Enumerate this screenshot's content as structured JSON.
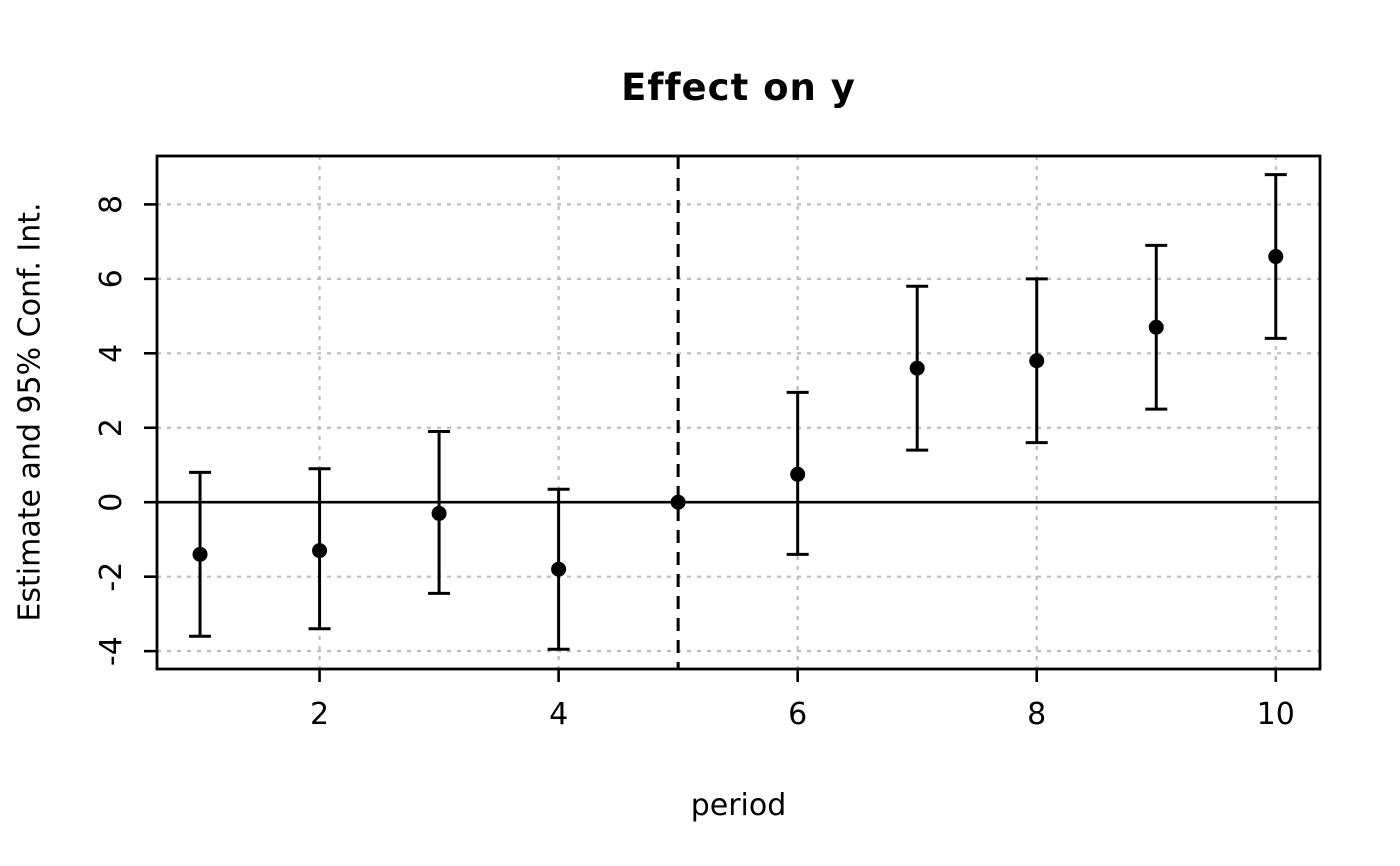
{
  "title": "Effect on y",
  "xlabel": "period",
  "ylabel": "Estimate and 95% Conf. Int.",
  "colors": {
    "foreground": "#000000",
    "grid": "#bdbdbd",
    "background": "#ffffff"
  },
  "chart_data": {
    "type": "scatter",
    "subtype": "event-study-estimates-with-ci",
    "title": "Effect on y",
    "xlabel": "period",
    "ylabel": "Estimate and 95% Conf. Int.",
    "x": [
      1,
      2,
      3,
      4,
      5,
      6,
      7,
      8,
      9,
      10
    ],
    "estimates": [
      -1.4,
      -1.3,
      -0.3,
      -1.8,
      0,
      0.75,
      3.6,
      3.8,
      4.7,
      6.6
    ],
    "ci_low": [
      -3.6,
      -3.4,
      -2.45,
      -3.95,
      null,
      -1.4,
      1.4,
      1.6,
      2.5,
      4.4
    ],
    "ci_high": [
      0.8,
      0.9,
      1.9,
      0.35,
      null,
      2.95,
      5.8,
      6.0,
      6.9,
      8.8
    ],
    "reference_period": 5,
    "zero_line": 0,
    "x_ticks": [
      2,
      4,
      6,
      8,
      10
    ],
    "y_ticks": [
      -4,
      -2,
      0,
      2,
      4,
      6,
      8
    ],
    "x_range": [
      0.64,
      10.37
    ],
    "y_range": [
      -4.48,
      9.3
    ],
    "grid": true,
    "grid_x_at": [
      2,
      4,
      6,
      8,
      10
    ],
    "grid_y_at": [
      -4,
      -2,
      2,
      4,
      6,
      8
    ],
    "legend": "none"
  }
}
